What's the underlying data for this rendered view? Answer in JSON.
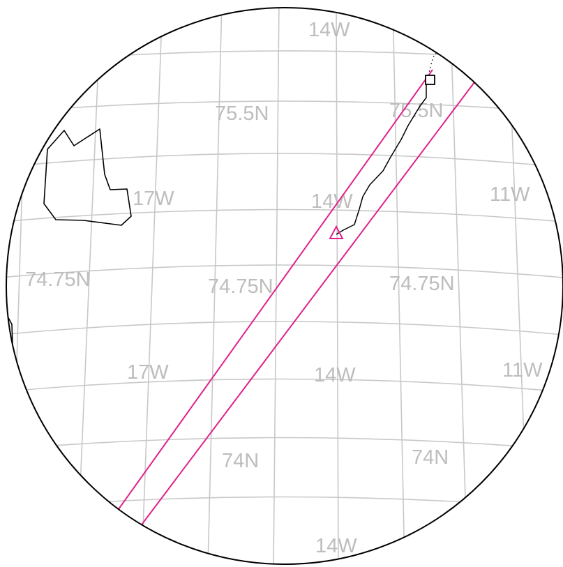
{
  "map": {
    "projection": "orthographic",
    "colors": {
      "graticule": "#c8c8c8",
      "labels": "#bdbdbd",
      "coastline": "#000000",
      "swath": "#e0218a",
      "frame": "#000000"
    },
    "graticule_labels": {
      "lon_14w_top": "14W",
      "lat_75_5_left": "75.5N",
      "lat_75_5_right": "75.5N",
      "lon_17w_upper": "17W",
      "lon_14w_mid": "14W",
      "lon_11w_upper": "11W",
      "lat_74_75_left": "74.75N",
      "lat_74_75_mid": "74.75N",
      "lat_74_75_right": "74.75N",
      "lon_17w_lower": "17W",
      "lon_14w_lower": "14W",
      "lon_11w_lower": "11W",
      "lat_74_mid": "74N",
      "lat_74_right": "74N",
      "lon_14w_bottom": "14W"
    },
    "markers": [
      {
        "kind": "square",
        "color": "#000000",
        "icon": "square-marker-icon"
      },
      {
        "kind": "triangle",
        "color": "#e0218a",
        "icon": "triangle-marker-icon"
      }
    ]
  }
}
